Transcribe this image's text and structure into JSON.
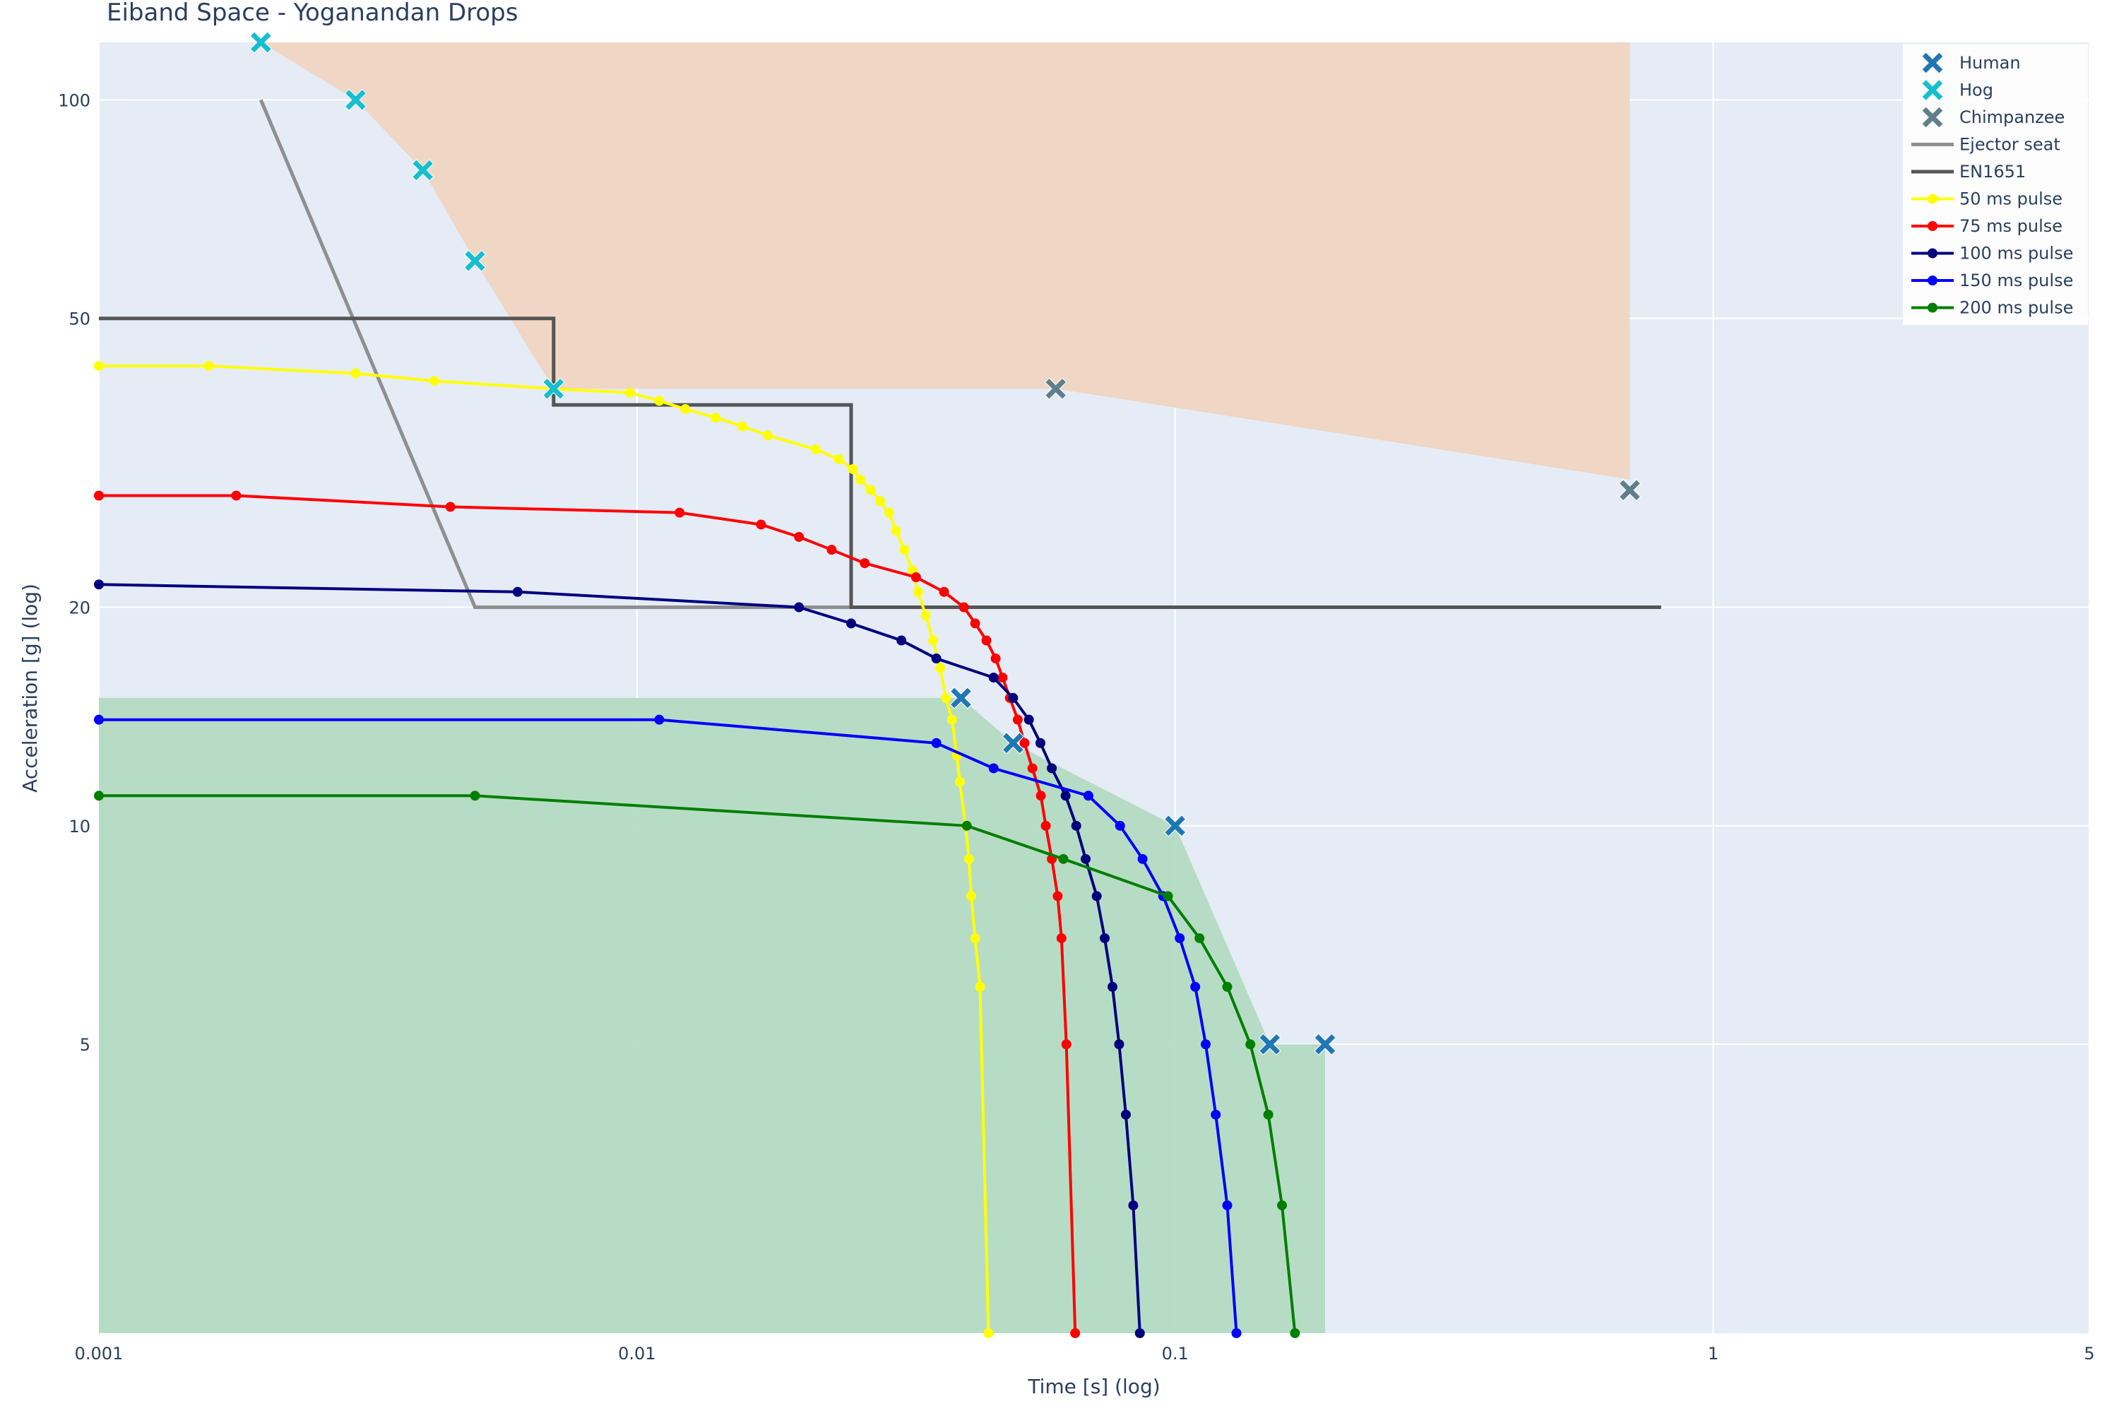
{
  "chart_data": {
    "type": "line",
    "title": "Eiband Space - Yoganandan Drops",
    "xlabel": "Time [s] (log)",
    "ylabel": "Acceleration [g] (log)",
    "x_scale": "log",
    "y_scale": "log",
    "xlim": [
      0.001,
      5
    ],
    "ylim": [
      2,
      120
    ],
    "x_ticks": [
      {
        "value": 0.001,
        "label": "0.001"
      },
      {
        "value": 0.01,
        "label": "0.01"
      },
      {
        "value": 0.1,
        "label": "0.1"
      },
      {
        "value": 1,
        "label": "1"
      },
      {
        "value": 5,
        "label": "5"
      }
    ],
    "y_ticks": [
      {
        "value": 5,
        "label": "5"
      },
      {
        "value": 10,
        "label": "10"
      },
      {
        "value": 20,
        "label": "20"
      },
      {
        "value": 50,
        "label": "50"
      },
      {
        "value": 100,
        "label": "100"
      }
    ],
    "grid": true,
    "legend_position": "top-right",
    "colors": {
      "plot_bg": "#e5ecf6",
      "grid": "#ffffff",
      "upper_region": "#efd5c2",
      "lower_region": "#b4dbc2"
    },
    "regions": [
      {
        "x": [
          0.002,
          0.003,
          0.004,
          0.005,
          0.007,
          0.06,
          0.7,
          0.7,
          0.002
        ],
        "y": [
          120,
          100,
          80,
          60,
          40,
          40,
          30,
          120,
          120
        ]
      },
      {
        "x": [
          0.001,
          0.04,
          0.05,
          0.1,
          0.15,
          0.19,
          0.19,
          0.001
        ],
        "y": [
          15,
          15,
          13,
          10,
          5,
          5,
          2,
          2
        ]
      }
    ],
    "series": [
      {
        "name": "Human",
        "kind": "marker",
        "color": "#1f77b4",
        "x": [
          0.04,
          0.05,
          0.1,
          0.15,
          0.19
        ],
        "y": [
          15,
          13,
          10,
          5,
          5
        ]
      },
      {
        "name": "Hog",
        "kind": "marker",
        "color": "#17becf",
        "x": [
          0.002,
          0.003,
          0.004,
          0.005,
          0.007
        ],
        "y": [
          120,
          100,
          80,
          60,
          40
        ]
      },
      {
        "name": "Chimpanzee",
        "kind": "marker",
        "color": "#5f7f8c",
        "x": [
          0.06,
          0.7
        ],
        "y": [
          40,
          29
        ]
      },
      {
        "name": "Ejector seat",
        "kind": "line",
        "color": "#8f8f8f",
        "x": [
          0.002,
          0.005,
          0.8
        ],
        "y": [
          100,
          20,
          20
        ]
      },
      {
        "name": "EN1651",
        "kind": "line",
        "color": "#555555",
        "x": [
          0.001,
          0.007,
          0.007,
          0.025,
          0.025,
          0.8
        ],
        "y": [
          50,
          50,
          38,
          38,
          20,
          20
        ]
      },
      {
        "name": "50  ms pulse",
        "kind": "line+marker",
        "color": "#ffff00",
        "x": [
          0.001,
          0.0016,
          0.003,
          0.0042,
          0.007,
          0.0097,
          0.011,
          0.0123,
          0.014,
          0.0157,
          0.0175,
          0.0215,
          0.0237,
          0.0252,
          0.026,
          0.0272,
          0.0283,
          0.0294,
          0.0303,
          0.0314,
          0.0325,
          0.0333,
          0.0344,
          0.0355,
          0.0366,
          0.0375,
          0.0385,
          0.0393,
          0.0398,
          0.0408,
          0.0414,
          0.0418,
          0.0425,
          0.0434,
          0.045
        ],
        "y": [
          43,
          43,
          42,
          41,
          40,
          39.5,
          38.5,
          37.5,
          36.5,
          35.5,
          34.5,
          33,
          32,
          31,
          30,
          29,
          28,
          27,
          25.5,
          24,
          22.5,
          21,
          19.5,
          18,
          16.5,
          15,
          14,
          12.5,
          11.5,
          10,
          9,
          8,
          7,
          6,
          2
        ]
      },
      {
        "name": "75  ms pulse",
        "kind": "line+marker",
        "color": "#ff0000",
        "x": [
          0.001,
          0.0018,
          0.0045,
          0.012,
          0.017,
          0.02,
          0.023,
          0.0265,
          0.033,
          0.0372,
          0.0405,
          0.0425,
          0.0446,
          0.0464,
          0.0478,
          0.0493,
          0.051,
          0.0525,
          0.0543,
          0.0563,
          0.0575,
          0.059,
          0.0605,
          0.0615,
          0.0628,
          0.0652
        ],
        "y": [
          28.5,
          28.5,
          27.5,
          27,
          26,
          25,
          24,
          23,
          22,
          21,
          20,
          19,
          18,
          17,
          16,
          15,
          14,
          13,
          12,
          11,
          10,
          9,
          8,
          7,
          5,
          2
        ]
      },
      {
        "name": "100  ms pulse",
        "kind": "line+marker",
        "color": "#00007f",
        "x": [
          0.001,
          0.006,
          0.02,
          0.025,
          0.031,
          0.036,
          0.046,
          0.05,
          0.0535,
          0.0562,
          0.059,
          0.0626,
          0.0655,
          0.0682,
          0.0715,
          0.074,
          0.0765,
          0.0787,
          0.081,
          0.0836,
          0.086
        ],
        "y": [
          21.5,
          21,
          20,
          19,
          18,
          17,
          16,
          15,
          14,
          13,
          12,
          11,
          10,
          9,
          8,
          7,
          6,
          5,
          4,
          3,
          2
        ]
      },
      {
        "name": "150  ms pulse",
        "kind": "line+marker",
        "color": "#0000ff",
        "x": [
          0.001,
          0.011,
          0.036,
          0.046,
          0.069,
          0.079,
          0.087,
          0.095,
          0.102,
          0.109,
          0.114,
          0.119,
          0.125,
          0.13
        ],
        "y": [
          14,
          14,
          13,
          12,
          11,
          10,
          9,
          8,
          7,
          6,
          5,
          4,
          3,
          2
        ]
      },
      {
        "name": "200  ms pulse",
        "kind": "line+marker",
        "color": "#007f00",
        "x": [
          0.001,
          0.005,
          0.041,
          0.062,
          0.097,
          0.111,
          0.125,
          0.138,
          0.149,
          0.158,
          0.167
        ],
        "y": [
          11,
          11,
          10,
          9,
          8,
          7,
          6,
          5,
          4,
          3,
          2
        ]
      }
    ]
  }
}
